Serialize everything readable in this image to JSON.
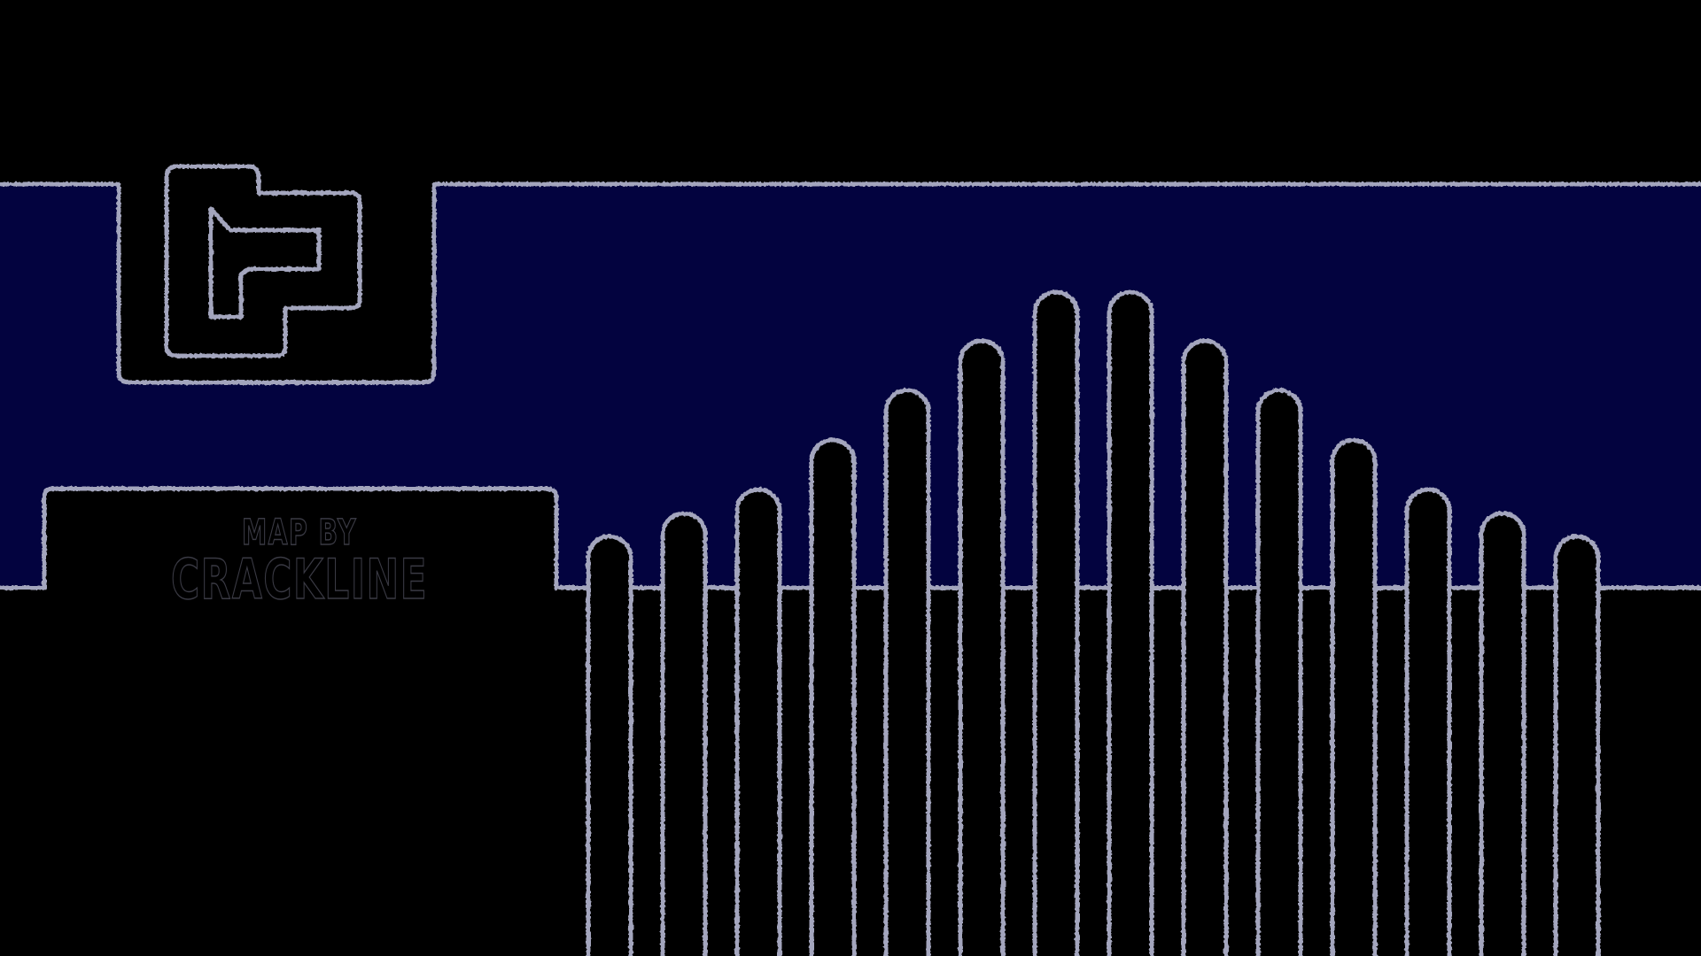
{
  "credit": {
    "line1": "MAP BY",
    "line2": "CRACKLINE"
  },
  "colors": {
    "background": "#000000",
    "water": "#03033f",
    "outline": "#a3a5bd",
    "text_stroke": "#3a3a44"
  },
  "icons": {
    "logo": "interlocking-blocks-logo"
  }
}
